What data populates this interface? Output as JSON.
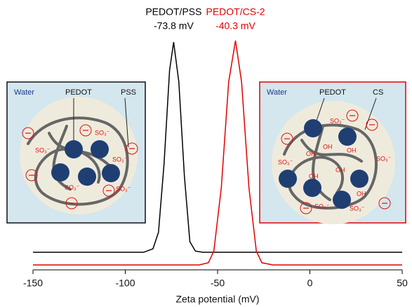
{
  "chart_data": {
    "type": "line",
    "xlabel": "Zeta potential (mV)",
    "xlim": [
      -150,
      50
    ],
    "xticks": [
      -150,
      -100,
      -50,
      0,
      50
    ],
    "ylim": [
      0,
      100
    ],
    "series": [
      {
        "name": "PEDOT/PSS",
        "label": "-73.8 mV",
        "color": "#000000",
        "x": [
          -150,
          -90,
          -85,
          -82,
          -79,
          -76,
          -73.8,
          -71,
          -68,
          -65,
          -62,
          -58,
          50
        ],
        "values": [
          7.5,
          7.5,
          9,
          16,
          45,
          85,
          97,
          80,
          40,
          12,
          8,
          7.5,
          7.5
        ]
      },
      {
        "name": "PEDOT/CS-2",
        "label": "-40.3 mV",
        "color": "#e00000",
        "x": [
          -150,
          -60,
          -55,
          -52,
          -48,
          -44,
          -40.3,
          -37,
          -33,
          -29,
          -26,
          -20,
          50
        ],
        "values": [
          2.1,
          2.1,
          3,
          8,
          35,
          80,
          97.6,
          80,
          35,
          8,
          3,
          2.1,
          2.1
        ]
      }
    ]
  },
  "left_inset": {
    "water": "Water",
    "pedot": "PEDOT",
    "polymer": "PSS",
    "ions": [
      "SO₃⁻",
      "SO₃⁻",
      "SO₃⁻",
      "SO₃⁻",
      "SO₃⁻"
    ]
  },
  "right_inset": {
    "water": "Water",
    "pedot": "PEDOT",
    "polymer": "CS",
    "ions": [
      "SO₃⁻",
      "SO₃⁻",
      "SO₃⁻",
      "SO₃⁻",
      "SO₃⁻"
    ],
    "hydroxyls": [
      "OH",
      "OH",
      "OH",
      "OH",
      "OH",
      "OH"
    ]
  }
}
